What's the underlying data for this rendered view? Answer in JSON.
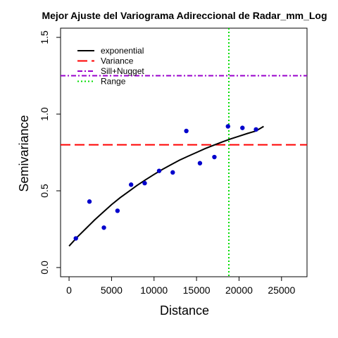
{
  "chart_data": {
    "type": "scatter",
    "title": "Mejor Ajuste del Variograma Adireccional de Radar_mm_Log",
    "xlabel": "Distance",
    "ylabel": "Semivariance",
    "xlim": [
      -1000,
      28000
    ],
    "ylim": [
      -0.06,
      1.56
    ],
    "x_ticks": [
      0,
      5000,
      10000,
      15000,
      20000,
      25000
    ],
    "x_tick_labels": [
      "0",
      "5000",
      "10000",
      "15000",
      "20000",
      "25000"
    ],
    "y_ticks": [
      0.0,
      0.5,
      1.0,
      1.5
    ],
    "y_tick_labels": [
      "0.0",
      "0.5",
      "1.0",
      "1.5"
    ],
    "grid": false,
    "legend_position": "top-left",
    "points": {
      "color": "#0000cc",
      "x": [
        800,
        2400,
        4100,
        5700,
        7300,
        8900,
        10600,
        12200,
        13800,
        15400,
        17100,
        18700,
        20400,
        22000
      ],
      "y": [
        0.19,
        0.43,
        0.26,
        0.37,
        0.54,
        0.55,
        0.63,
        0.62,
        0.89,
        0.68,
        0.72,
        0.92,
        0.91,
        0.9
      ]
    },
    "series": [
      {
        "name": "exponential",
        "kind": "curve",
        "color": "#000000",
        "dash": "solid",
        "x": [
          0,
          1000,
          2000,
          3000,
          4000,
          5000,
          6000,
          7000,
          8000,
          9000,
          10000,
          11000,
          12000,
          13000,
          14000,
          15000,
          16000,
          17000,
          18000,
          19000,
          20000,
          21000,
          22000,
          22900
        ],
        "y": [
          0.14,
          0.2,
          0.255,
          0.31,
          0.36,
          0.41,
          0.455,
          0.495,
          0.535,
          0.572,
          0.607,
          0.64,
          0.67,
          0.7,
          0.725,
          0.75,
          0.775,
          0.797,
          0.818,
          0.838,
          0.856,
          0.874,
          0.89,
          0.92
        ]
      },
      {
        "name": "Variance",
        "kind": "hline",
        "value": 0.8,
        "color": "#ff0000",
        "dash": "long-dash"
      },
      {
        "name": "Sill+Nugget",
        "kind": "hline",
        "value": 1.25,
        "color": "#9900cc",
        "dash": "dash-dot"
      },
      {
        "name": "Range",
        "kind": "vline",
        "value": 18800,
        "color": "#00dd00",
        "dash": "dotted"
      }
    ]
  }
}
